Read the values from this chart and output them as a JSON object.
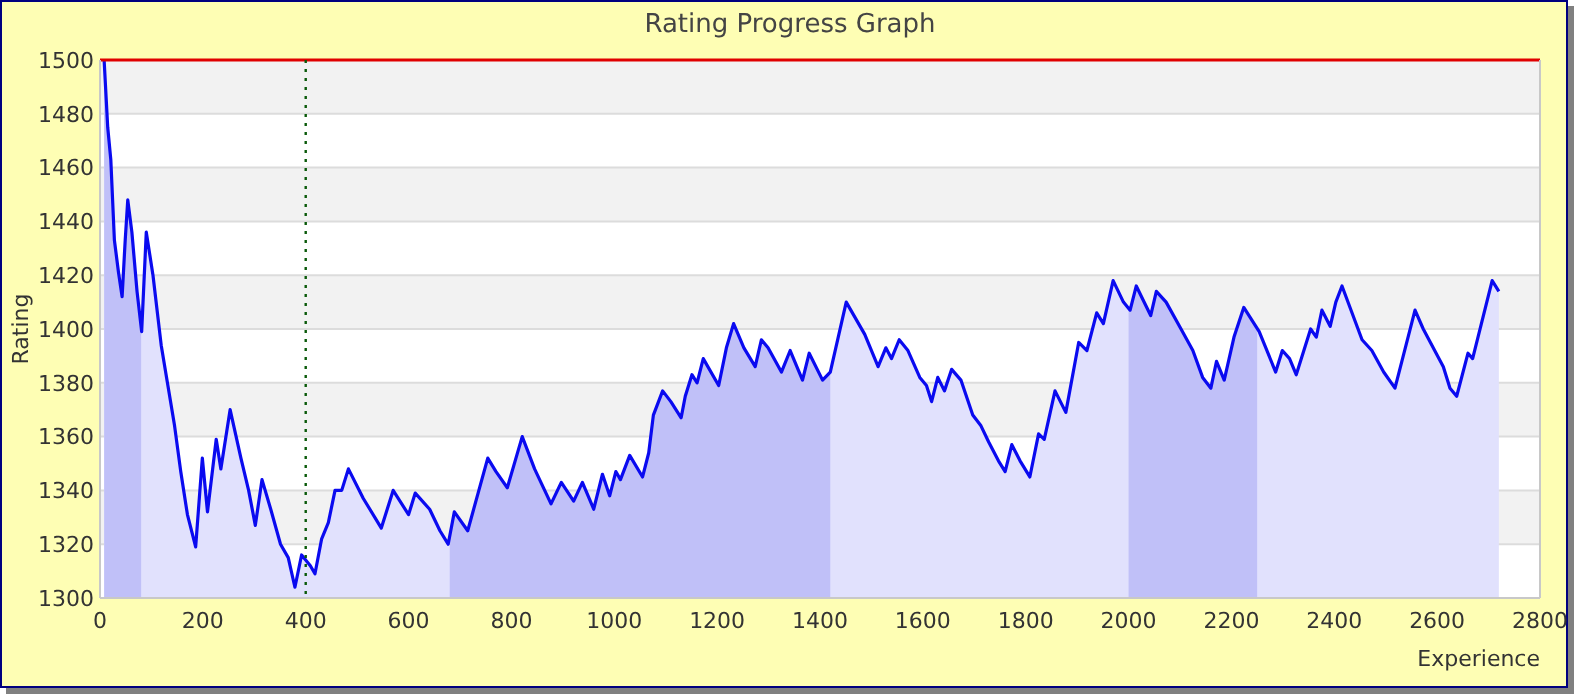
{
  "chart_data": {
    "type": "area",
    "title": "Rating Progress Graph",
    "xlabel": "Experience",
    "ylabel": "Rating",
    "xlim": [
      0,
      2800
    ],
    "xticks": [
      0,
      200,
      400,
      600,
      800,
      1000,
      1200,
      1400,
      1600,
      1800,
      2000,
      2200,
      2400,
      2600,
      2800
    ],
    "ylim": [
      1300,
      1500
    ],
    "yticks": [
      1300,
      1320,
      1340,
      1360,
      1380,
      1400,
      1420,
      1440,
      1460,
      1480,
      1500
    ],
    "grid": "y",
    "marker": "none",
    "line_style": "solid",
    "series": [
      {
        "color": "#0a0af0",
        "x": [
          8,
          15,
          21,
          28,
          36,
          43,
          49,
          54,
          62,
          72,
          81,
          90,
          103,
          119,
          132,
          145,
          157,
          170,
          186,
          199,
          209,
          226,
          235,
          253,
          274,
          289,
          302,
          315,
          332,
          351,
          366,
          379,
          392,
          409,
          418,
          431,
          444,
          457,
          470,
          483,
          512,
          547,
          570,
          600,
          613,
          641,
          661,
          677,
          689,
          715,
          754,
          770,
          792,
          821,
          845,
          877,
          897,
          921,
          938,
          960,
          977,
          991,
          1003,
          1012,
          1030,
          1055,
          1067,
          1076,
          1094,
          1110,
          1130,
          1138,
          1151,
          1161,
          1173,
          1203,
          1218,
          1232,
          1252,
          1274,
          1286,
          1299,
          1325,
          1342,
          1366,
          1379,
          1405,
          1420,
          1451,
          1487,
          1513,
          1528,
          1539,
          1554,
          1571,
          1594,
          1607,
          1617,
          1629,
          1642,
          1656,
          1674,
          1697,
          1713,
          1728,
          1747,
          1760,
          1773,
          1789,
          1808,
          1825,
          1836,
          1857,
          1878,
          1903,
          1919,
          1938,
          1951,
          1970,
          1990,
          2003,
          2015,
          2043,
          2054,
          2073,
          2102,
          2125,
          2144,
          2160,
          2171,
          2186,
          2205,
          2224,
          2254,
          2286,
          2299,
          2313,
          2326,
          2354,
          2365,
          2376,
          2392,
          2403,
          2415,
          2454,
          2473,
          2496,
          2518,
          2557,
          2573,
          2612,
          2625,
          2638,
          2660,
          2669,
          2707,
          2720
        ],
        "values": [
          1500,
          1475,
          1463,
          1433,
          1421,
          1412,
          1433,
          1448,
          1436,
          1414,
          1399,
          1436,
          1420,
          1394,
          1379,
          1364,
          1347,
          1331,
          1319,
          1352,
          1332,
          1359,
          1348,
          1370,
          1352,
          1340,
          1327,
          1344,
          1333,
          1320,
          1315,
          1304,
          1316,
          1312,
          1309,
          1322,
          1328,
          1340,
          1340,
          1348,
          1337,
          1326,
          1340,
          1331,
          1339,
          1333,
          1325,
          1320,
          1332,
          1325,
          1352,
          1347,
          1341,
          1360,
          1348,
          1335,
          1343,
          1336,
          1343,
          1333,
          1346,
          1338,
          1347,
          1344,
          1353,
          1345,
          1354,
          1368,
          1377,
          1373,
          1367,
          1375,
          1383,
          1380,
          1389,
          1379,
          1393,
          1402,
          1393,
          1386,
          1396,
          1393,
          1384,
          1392,
          1381,
          1391,
          1381,
          1384,
          1410,
          1398,
          1386,
          1393,
          1389,
          1396,
          1392,
          1382,
          1379,
          1373,
          1382,
          1377,
          1385,
          1381,
          1368,
          1364,
          1358,
          1351,
          1347,
          1357,
          1351,
          1345,
          1361,
          1359,
          1377,
          1369,
          1395,
          1392,
          1406,
          1402,
          1418,
          1410,
          1407,
          1416,
          1405,
          1414,
          1410,
          1400,
          1392,
          1382,
          1378,
          1388,
          1381,
          1397,
          1408,
          1399,
          1384,
          1392,
          1389,
          1383,
          1400,
          1397,
          1407,
          1401,
          1410,
          1416,
          1396,
          1392,
          1384,
          1378,
          1407,
          1400,
          1386,
          1378,
          1375,
          1391,
          1389,
          1418,
          1414
        ]
      }
    ],
    "bands": [
      {
        "axis": "x",
        "from": 0,
        "to": 80,
        "color": "#dadafa"
      },
      {
        "axis": "x",
        "from": 680,
        "to": 1420,
        "color": "#dadafa"
      },
      {
        "axis": "x",
        "from": 2000,
        "to": 2250,
        "color": "#dadafa"
      }
    ],
    "ref_lines": [
      {
        "axis": "y",
        "value": 1500,
        "color": "#e00000",
        "line_style": "solid"
      },
      {
        "axis": "x",
        "value": 400,
        "color": "#0a5a0a",
        "line_style": "dotted"
      }
    ]
  }
}
